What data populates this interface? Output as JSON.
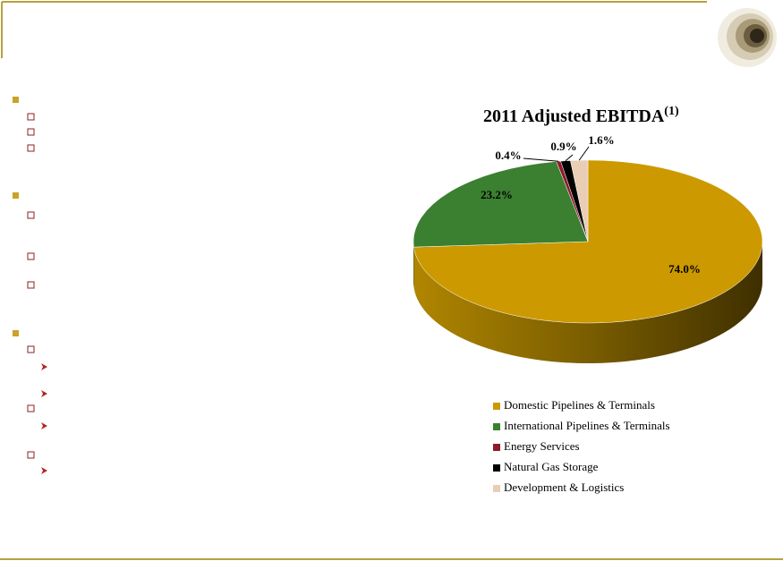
{
  "chart_data": {
    "type": "pie3d",
    "title": "2011 Adjusted EBITDA",
    "title_note": "(1)",
    "categories": [
      "Domestic Pipelines & Terminals",
      "International Pipelines & Terminals",
      "Energy Services",
      "Natural Gas Storage",
      "Development & Logistics"
    ],
    "values": [
      74.0,
      23.2,
      0.4,
      0.9,
      1.6
    ],
    "value_labels": [
      "74.0%",
      "23.2%",
      "0.4%",
      "0.9%",
      "1.6%"
    ],
    "colors": [
      "#CC9900",
      "#3B8030",
      "#8E1B2C",
      "#000000",
      "#E9CDB4"
    ],
    "legend": "bottom"
  }
}
